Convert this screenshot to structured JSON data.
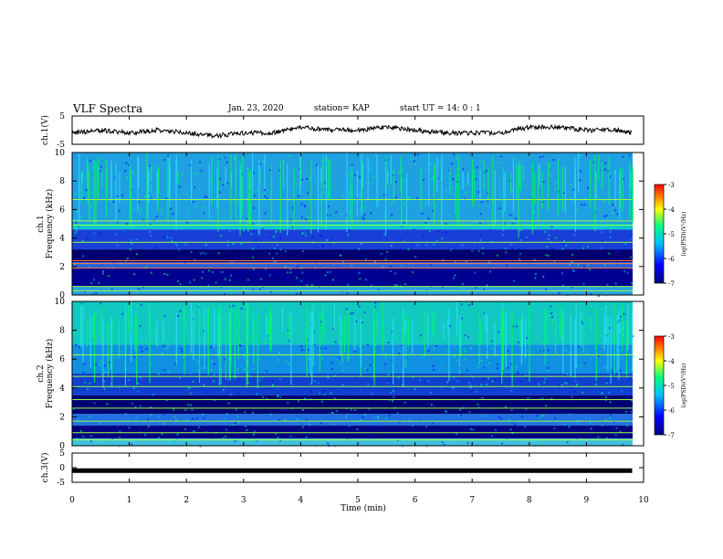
{
  "header": {
    "title": "VLF Spectra",
    "date": "Jan. 23, 2020",
    "station": "station= KAP",
    "start": "start  UT =   14: 0  : 1"
  },
  "chart_data": [
    {
      "type": "line",
      "name": "ch1-waveform",
      "ylabel": "ch.1(V)",
      "ylim": [
        -5,
        5
      ],
      "yticks": [
        "5",
        "-5"
      ],
      "xlim": [
        0,
        10
      ],
      "x": [
        0,
        0.5,
        1,
        1.5,
        2,
        2.5,
        3,
        3.5,
        4,
        4.5,
        5,
        5.5,
        6,
        6.5,
        7,
        7.5,
        8,
        8.5,
        9,
        9.5,
        9.8
      ],
      "y": [
        -1,
        0,
        -1,
        0,
        -1,
        -2,
        -1,
        -1,
        1,
        0,
        0,
        1,
        0,
        -1,
        -1,
        -1,
        1,
        1,
        0,
        0,
        -1
      ],
      "color": "#000000"
    },
    {
      "type": "heatmap",
      "name": "ch1-spectrogram",
      "ylabel": "ch.1\nFrequency  (kHz)",
      "ylim": [
        0,
        10
      ],
      "yticks": [
        "0",
        "2",
        "4",
        "6",
        "8",
        "10"
      ],
      "xlim": [
        0,
        10
      ],
      "colorbar": {
        "label": "log(PSD)(V²/Hz)",
        "range": [
          -7,
          -3
        ],
        "ticks": [
          "-3",
          "-4",
          "-5",
          "-6",
          "-7"
        ]
      }
    },
    {
      "type": "heatmap",
      "name": "ch2-spectrogram",
      "ylabel": "ch.2\nFrequency  (kHz)",
      "ylim": [
        0,
        10
      ],
      "yticks": [
        "0",
        "2",
        "4",
        "6",
        "8",
        "10"
      ],
      "xlim": [
        0,
        10
      ],
      "colorbar": {
        "label": "log(PSD)(V²/Hz)",
        "range": [
          -7,
          -3
        ],
        "ticks": [
          "-3",
          "-4",
          "-5",
          "-6",
          "-7"
        ]
      }
    },
    {
      "type": "line",
      "name": "ch3-waveform",
      "ylabel": "ch.3(V)",
      "ylim": [
        -5,
        5
      ],
      "yticks": [
        "5",
        "0",
        "-5"
      ],
      "xlim": [
        0,
        10
      ],
      "x": [
        0,
        9.8
      ],
      "y": [
        -1,
        -1
      ],
      "color": "#000000"
    }
  ],
  "xaxis": {
    "label": "Time  (min)",
    "ticks": [
      "0",
      "1",
      "2",
      "3",
      "4",
      "5",
      "6",
      "7",
      "8",
      "9",
      "10"
    ]
  },
  "colors": {
    "scale": [
      "#000080",
      "#0000ff",
      "#00bfff",
      "#00ff80",
      "#ffff00",
      "#ff0000"
    ]
  }
}
